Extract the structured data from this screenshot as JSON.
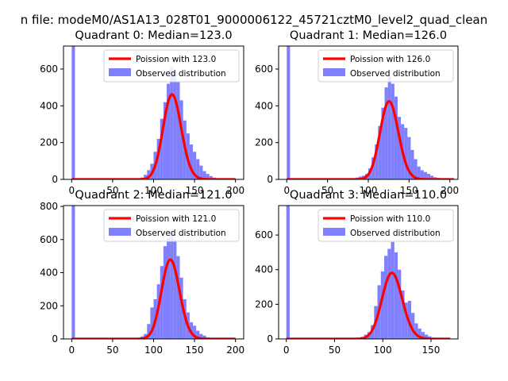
{
  "suptitle": "n file: modeM0/AS1A13_028T01_9000006122_45721cztM0_level2_quad_clean",
  "colors": {
    "poisson": "#ff0000",
    "observed": "#8080ff",
    "axis": "#000000"
  },
  "chart_data": [
    {
      "type": "bar",
      "title": "Quadrant 0: Median=123.0",
      "xlim": [
        -10,
        210
      ],
      "ylim": [
        0,
        725
      ],
      "xticks": [
        0,
        50,
        100,
        150,
        200
      ],
      "xtick_labels": [
        "0",
        "50",
        "100",
        "150",
        "200"
      ],
      "yticks": [
        0,
        200,
        400,
        600
      ],
      "ytick_labels": [
        "0",
        "200",
        "400",
        "600"
      ],
      "legend_loc": "upper right",
      "series": [
        {
          "name": "Poission with 123.0",
          "kind": "line",
          "mu": 123.0,
          "xrange": [
            0,
            200
          ]
        },
        {
          "name": "Observed distribution",
          "kind": "histogram",
          "bin_width": 4,
          "bins": [
            {
              "x": 0,
              "y": 725
            },
            {
              "x": 76,
              "y": 2
            },
            {
              "x": 80,
              "y": 5
            },
            {
              "x": 84,
              "y": 10
            },
            {
              "x": 88,
              "y": 25
            },
            {
              "x": 92,
              "y": 50
            },
            {
              "x": 96,
              "y": 85
            },
            {
              "x": 100,
              "y": 150
            },
            {
              "x": 104,
              "y": 220
            },
            {
              "x": 108,
              "y": 330
            },
            {
              "x": 112,
              "y": 420
            },
            {
              "x": 116,
              "y": 520
            },
            {
              "x": 120,
              "y": 610
            },
            {
              "x": 124,
              "y": 590
            },
            {
              "x": 128,
              "y": 530
            },
            {
              "x": 132,
              "y": 430
            },
            {
              "x": 136,
              "y": 320
            },
            {
              "x": 140,
              "y": 250
            },
            {
              "x": 144,
              "y": 190
            },
            {
              "x": 148,
              "y": 150
            },
            {
              "x": 152,
              "y": 110
            },
            {
              "x": 156,
              "y": 75
            },
            {
              "x": 160,
              "y": 45
            },
            {
              "x": 164,
              "y": 30
            },
            {
              "x": 168,
              "y": 18
            },
            {
              "x": 172,
              "y": 10
            },
            {
              "x": 176,
              "y": 5
            }
          ]
        }
      ]
    },
    {
      "type": "bar",
      "title": "Quadrant 1: Median=126.0",
      "xlim": [
        -10,
        210
      ],
      "ylim": [
        0,
        725
      ],
      "xticks": [
        0,
        50,
        100,
        150,
        200
      ],
      "xtick_labels": [
        "0",
        "50",
        "100",
        "150",
        "200"
      ],
      "yticks": [
        0,
        200,
        400,
        600
      ],
      "ytick_labels": [
        "0",
        "200",
        "400",
        "600"
      ],
      "legend_loc": "upper right",
      "series": [
        {
          "name": "Poission with 126.0",
          "kind": "line",
          "mu": 126.0,
          "xrange": [
            0,
            205
          ]
        },
        {
          "name": "Observed distribution",
          "kind": "histogram",
          "bin_width": 4,
          "bins": [
            {
              "x": 0,
              "y": 725
            },
            {
              "x": 76,
              "y": 3
            },
            {
              "x": 80,
              "y": 6
            },
            {
              "x": 84,
              "y": 10
            },
            {
              "x": 88,
              "y": 15
            },
            {
              "x": 92,
              "y": 20
            },
            {
              "x": 96,
              "y": 30
            },
            {
              "x": 100,
              "y": 60
            },
            {
              "x": 104,
              "y": 120
            },
            {
              "x": 108,
              "y": 190
            },
            {
              "x": 112,
              "y": 290
            },
            {
              "x": 116,
              "y": 390
            },
            {
              "x": 120,
              "y": 500
            },
            {
              "x": 124,
              "y": 560
            },
            {
              "x": 128,
              "y": 520
            },
            {
              "x": 132,
              "y": 450
            },
            {
              "x": 136,
              "y": 340
            },
            {
              "x": 140,
              "y": 300
            },
            {
              "x": 144,
              "y": 280
            },
            {
              "x": 148,
              "y": 230
            },
            {
              "x": 152,
              "y": 160
            },
            {
              "x": 156,
              "y": 110
            },
            {
              "x": 160,
              "y": 70
            },
            {
              "x": 164,
              "y": 50
            },
            {
              "x": 168,
              "y": 40
            },
            {
              "x": 172,
              "y": 30
            },
            {
              "x": 176,
              "y": 20
            },
            {
              "x": 180,
              "y": 12
            },
            {
              "x": 184,
              "y": 8
            }
          ]
        }
      ]
    },
    {
      "type": "bar",
      "title": "Quadrant 2: Median=121.0",
      "xlim": [
        -10,
        210
      ],
      "ylim": [
        0,
        805
      ],
      "xticks": [
        0,
        50,
        100,
        150,
        200
      ],
      "xtick_labels": [
        "0",
        "50",
        "100",
        "150",
        "200"
      ],
      "yticks": [
        0,
        200,
        400,
        600,
        800
      ],
      "ytick_labels": [
        "0",
        "200",
        "400",
        "600",
        "800"
      ],
      "legend_loc": "upper right",
      "series": [
        {
          "name": "Poission with 121.0",
          "kind": "line",
          "mu": 121.0,
          "xrange": [
            0,
            200
          ]
        },
        {
          "name": "Observed distribution",
          "kind": "histogram",
          "bin_width": 4,
          "bins": [
            {
              "x": 0,
              "y": 805
            },
            {
              "x": 76,
              "y": 3
            },
            {
              "x": 80,
              "y": 8
            },
            {
              "x": 84,
              "y": 15
            },
            {
              "x": 88,
              "y": 30
            },
            {
              "x": 92,
              "y": 90
            },
            {
              "x": 96,
              "y": 190
            },
            {
              "x": 100,
              "y": 240
            },
            {
              "x": 104,
              "y": 330
            },
            {
              "x": 108,
              "y": 440
            },
            {
              "x": 112,
              "y": 560
            },
            {
              "x": 116,
              "y": 610
            },
            {
              "x": 120,
              "y": 650
            },
            {
              "x": 124,
              "y": 600
            },
            {
              "x": 128,
              "y": 500
            },
            {
              "x": 132,
              "y": 370
            },
            {
              "x": 136,
              "y": 240
            },
            {
              "x": 140,
              "y": 160
            },
            {
              "x": 144,
              "y": 100
            },
            {
              "x": 148,
              "y": 80
            },
            {
              "x": 152,
              "y": 50
            },
            {
              "x": 156,
              "y": 30
            },
            {
              "x": 160,
              "y": 20
            },
            {
              "x": 164,
              "y": 10
            }
          ]
        }
      ]
    },
    {
      "type": "bar",
      "title": "Quadrant 3: Median=110.0",
      "xlim": [
        -8,
        178
      ],
      "ylim": [
        0,
        770
      ],
      "xticks": [
        0,
        50,
        100,
        150
      ],
      "xtick_labels": [
        "0",
        "50",
        "100",
        "150"
      ],
      "yticks": [
        0,
        200,
        400,
        600
      ],
      "ytick_labels": [
        "0",
        "200",
        "400",
        "600"
      ],
      "legend_loc": "upper right",
      "series": [
        {
          "name": "Poission with 110.0",
          "kind": "line",
          "mu": 110.0,
          "xrange": [
            0,
            170
          ]
        },
        {
          "name": "Observed distribution",
          "kind": "histogram",
          "bin_width": 3.5,
          "bins": [
            {
              "x": 0,
              "y": 770
            },
            {
              "x": 66.5,
              "y": 2
            },
            {
              "x": 70,
              "y": 4
            },
            {
              "x": 73.5,
              "y": 8
            },
            {
              "x": 77,
              "y": 12
            },
            {
              "x": 80.5,
              "y": 25
            },
            {
              "x": 84,
              "y": 40
            },
            {
              "x": 87.5,
              "y": 80
            },
            {
              "x": 91,
              "y": 190
            },
            {
              "x": 94.5,
              "y": 310
            },
            {
              "x": 98,
              "y": 390
            },
            {
              "x": 101.5,
              "y": 480
            },
            {
              "x": 105,
              "y": 520
            },
            {
              "x": 108.5,
              "y": 560
            },
            {
              "x": 112,
              "y": 500
            },
            {
              "x": 115.5,
              "y": 400
            },
            {
              "x": 119,
              "y": 280
            },
            {
              "x": 122.5,
              "y": 210
            },
            {
              "x": 126,
              "y": 220
            },
            {
              "x": 129.5,
              "y": 150
            },
            {
              "x": 133,
              "y": 90
            },
            {
              "x": 136.5,
              "y": 60
            },
            {
              "x": 140,
              "y": 40
            },
            {
              "x": 143.5,
              "y": 25
            },
            {
              "x": 147,
              "y": 15
            },
            {
              "x": 150.5,
              "y": 8
            },
            {
              "x": 154,
              "y": 4
            }
          ]
        }
      ]
    }
  ]
}
